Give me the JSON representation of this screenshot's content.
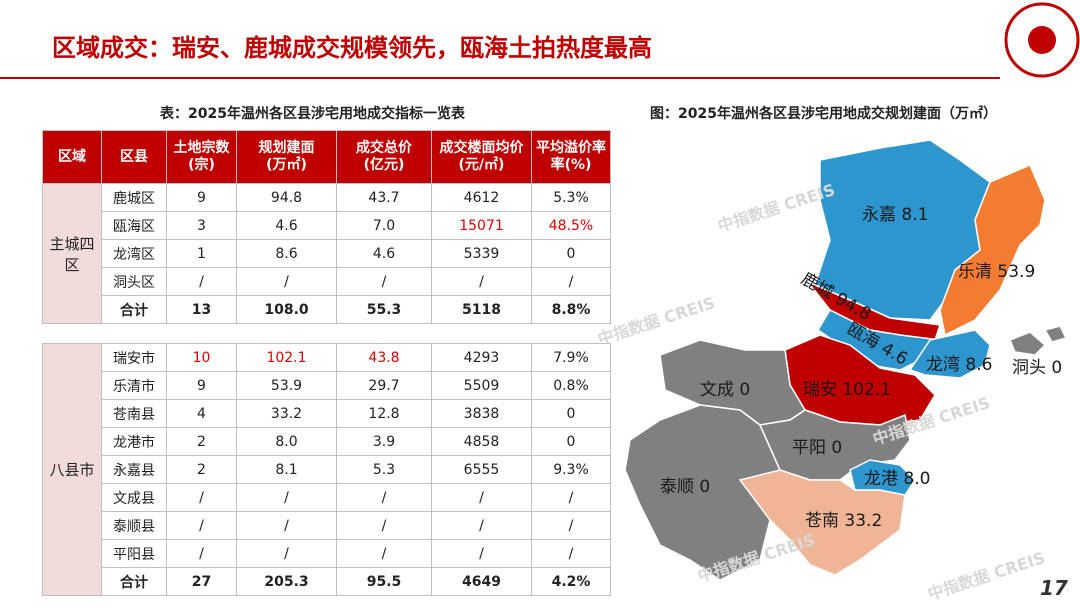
{
  "header": {
    "title": "区域成交：瑞安、鹿城成交规模领先，瓯海土拍热度最高"
  },
  "table": {
    "caption": "表：2025年温州各区县涉宅用地成交指标一览表",
    "columns": [
      [
        "区域"
      ],
      [
        "区县"
      ],
      [
        "土地宗数",
        "(宗)"
      ],
      [
        "规划建面",
        "(万㎡)"
      ],
      [
        "成交总价",
        "(亿元)"
      ],
      [
        "成交楼面均价",
        "(元/㎡)"
      ],
      [
        "平均溢价率",
        "率(%)"
      ]
    ],
    "groups": [
      {
        "name": "主城四区",
        "rows": [
          [
            "鹿城区",
            "9",
            "94.8",
            "43.7",
            "4612",
            "5.3%"
          ],
          [
            "瓯海区",
            "3",
            "4.6",
            "7.0",
            "15071",
            "48.5%"
          ],
          [
            "龙湾区",
            "1",
            "8.6",
            "4.6",
            "5339",
            "0"
          ],
          [
            "洞头区",
            "/",
            "/",
            "/",
            "/",
            "/"
          ],
          [
            "合计",
            "13",
            "108.0",
            "55.3",
            "5118",
            "8.8%"
          ]
        ]
      },
      {
        "name": "八县市",
        "rows": [
          [
            "瑞安市",
            "10",
            "102.1",
            "43.8",
            "4293",
            "7.9%"
          ],
          [
            "乐清市",
            "9",
            "53.9",
            "29.7",
            "5509",
            "0.8%"
          ],
          [
            "苍南县",
            "4",
            "33.2",
            "12.8",
            "3838",
            "0"
          ],
          [
            "龙港市",
            "2",
            "8.0",
            "3.9",
            "4858",
            "0"
          ],
          [
            "永嘉县",
            "2",
            "8.1",
            "5.3",
            "6555",
            "9.3%"
          ],
          [
            "文成县",
            "/",
            "/",
            "/",
            "/",
            "/"
          ],
          [
            "泰顺县",
            "/",
            "/",
            "/",
            "/",
            "/"
          ],
          [
            "平阳县",
            "/",
            "/",
            "/",
            "/",
            "/"
          ],
          [
            "合计",
            "27",
            "205.3",
            "95.5",
            "4649",
            "4.2%"
          ]
        ]
      }
    ]
  },
  "map": {
    "caption": "图：2025年温州各区县涉宅用地成交规划建面（万㎡）",
    "regions": [
      {
        "name": "永嘉",
        "value": "8.1"
      },
      {
        "name": "乐清",
        "value": "53.9"
      },
      {
        "name": "鹿城",
        "value": "94.8"
      },
      {
        "name": "瓯海",
        "value": "4.6"
      },
      {
        "name": "龙湾",
        "value": "8.6"
      },
      {
        "name": "洞头",
        "value": "0"
      },
      {
        "name": "文成",
        "value": "0"
      },
      {
        "name": "瑞安",
        "value": "102.1"
      },
      {
        "name": "平阳",
        "value": "0"
      },
      {
        "name": "泰顺",
        "value": "0"
      },
      {
        "name": "龙港",
        "value": "8.0"
      },
      {
        "name": "苍南",
        "value": "33.2"
      }
    ]
  },
  "watermark": "中指数据 CREIS",
  "page_number": "17"
}
